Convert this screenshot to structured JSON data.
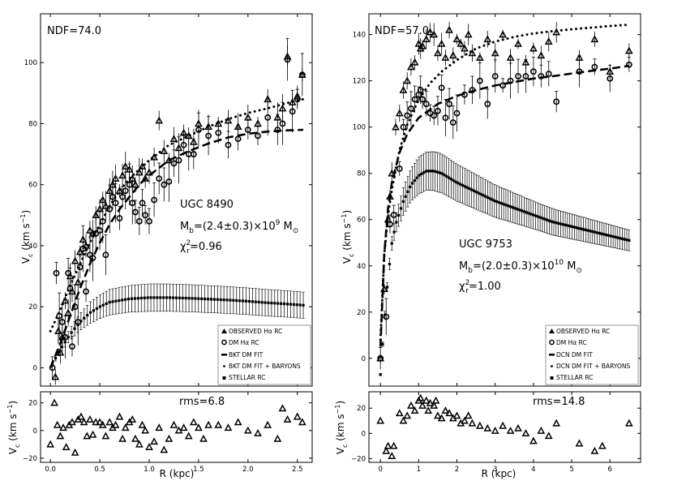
{
  "chart_data": [
    {
      "panel": "left",
      "type": "scatter",
      "ndf": "NDF=74.0",
      "galaxy": "UGC 8490",
      "mass_text": "M",
      "mass_sub": "b",
      "mass_value": "=(2.4±0.3)×10",
      "mass_exp": "9",
      "mass_unit": " M",
      "mass_unit_sub": "⊙",
      "chi_text": "χ",
      "chi_sup": "2",
      "chi_sub": "r",
      "chi_value": "=0.96",
      "rms": "rms=6.8",
      "ylabel": "V",
      "ylabel_sub": "c",
      "ylabel_unit": " (km s",
      "ylabel_exp": "−1",
      "ylabel_close": ")",
      "xlabel": "R (kpc)",
      "xlim": [
        -0.1,
        2.65
      ],
      "ylim": [
        -6,
        116
      ],
      "res_ylim": [
        -23,
        28
      ],
      "xticks": [
        0.0,
        0.5,
        1.0,
        1.5,
        2.0,
        2.5
      ],
      "xticklabels": [
        "0.0",
        "0.5",
        "1.0",
        "1.5",
        "2.0",
        "2.5"
      ],
      "yticks": [
        0,
        20,
        40,
        60,
        80,
        100
      ],
      "res_yticks": [
        -20,
        0,
        20
      ],
      "legend": [
        "OBSERVED Hα RC",
        "DM Hα RC",
        "BKT DM FIT",
        "BKT DM FIT + BARYONS",
        "STELLAR RC"
      ],
      "observed": {
        "x": [
          0.05,
          0.08,
          0.1,
          0.12,
          0.15,
          0.18,
          0.2,
          0.22,
          0.25,
          0.28,
          0.3,
          0.33,
          0.36,
          0.4,
          0.43,
          0.46,
          0.5,
          0.53,
          0.56,
          0.6,
          0.63,
          0.66,
          0.7,
          0.73,
          0.76,
          0.8,
          0.83,
          0.86,
          0.9,
          0.93,
          0.96,
          1.0,
          1.05,
          1.1,
          1.15,
          1.2,
          1.25,
          1.3,
          1.35,
          1.4,
          1.45,
          1.5,
          1.6,
          1.7,
          1.8,
          1.9,
          2.0,
          2.1,
          2.2,
          2.3,
          2.35,
          2.4,
          2.45,
          2.5,
          2.55
        ],
        "y": [
          -3,
          12,
          5,
          10,
          22,
          18,
          30,
          25,
          35,
          28,
          38,
          42,
          40,
          45,
          44,
          50,
          52,
          55,
          53,
          58,
          60,
          62,
          58,
          63,
          66,
          65,
          62,
          60,
          64,
          66,
          62,
          64,
          69,
          81,
          71,
          68,
          75,
          72,
          77,
          76,
          74,
          80,
          79,
          80,
          81,
          79,
          82,
          80,
          88,
          82,
          85,
          102,
          87,
          89,
          96
        ]
      },
      "dm": {
        "x": [
          0.02,
          0.06,
          0.09,
          0.12,
          0.15,
          0.18,
          0.2,
          0.22,
          0.25,
          0.28,
          0.3,
          0.33,
          0.36,
          0.4,
          0.43,
          0.46,
          0.5,
          0.53,
          0.56,
          0.6,
          0.63,
          0.66,
          0.7,
          0.73,
          0.76,
          0.8,
          0.83,
          0.86,
          0.9,
          0.93,
          0.96,
          1.0,
          1.05,
          1.1,
          1.15,
          1.2,
          1.25,
          1.3,
          1.35,
          1.4,
          1.45,
          1.5,
          1.6,
          1.7,
          1.8,
          1.9,
          2.0,
          2.1,
          2.2,
          2.3,
          2.35,
          2.4,
          2.45,
          2.5,
          2.55
        ],
        "y": [
          0,
          31,
          17,
          15,
          10,
          31,
          26,
          7,
          20,
          15,
          33,
          39,
          25,
          37,
          36,
          44,
          45,
          48,
          37,
          52,
          56,
          54,
          49,
          56,
          58,
          60,
          54,
          51,
          48,
          54,
          50,
          48,
          55,
          62,
          60,
          61,
          67,
          68,
          73,
          70,
          70,
          78,
          76,
          77,
          73,
          75,
          78,
          76,
          82,
          78,
          80,
          101,
          84,
          88,
          96
        ]
      },
      "fit": {
        "x": [
          0.0,
          0.1,
          0.2,
          0.3,
          0.4,
          0.5,
          0.6,
          0.7,
          0.8,
          0.9,
          1.0,
          1.2,
          1.4,
          1.6,
          1.8,
          2.0,
          2.2,
          2.4,
          2.56
        ],
        "y": [
          0,
          8,
          17,
          26,
          34,
          41,
          47,
          52,
          56,
          60,
          63,
          68,
          71,
          73.5,
          75.5,
          76.7,
          77.4,
          77.8,
          78
        ]
      },
      "fit_baryons": {
        "x": [
          0.0,
          0.1,
          0.2,
          0.3,
          0.4,
          0.5,
          0.6,
          0.7,
          0.8,
          0.9,
          1.0,
          1.2,
          1.4,
          1.6,
          1.8,
          2.0,
          2.2,
          2.4,
          2.56
        ],
        "y": [
          12,
          19,
          27,
          34,
          41,
          47,
          53,
          58,
          62,
          65,
          68,
          73,
          76,
          79,
          81.5,
          83.5,
          85,
          86.8,
          88
        ]
      },
      "stellar": {
        "x_start": 0.02,
        "x_end": 2.56,
        "count": 80,
        "curve": {
          "x": [
            0.0,
            0.1,
            0.2,
            0.3,
            0.4,
            0.5,
            0.6,
            0.8,
            1.0,
            1.2,
            1.4,
            1.6,
            1.8,
            2.0,
            2.2,
            2.4,
            2.56
          ],
          "y": [
            0,
            6,
            11,
            15,
            18,
            20,
            21.5,
            22.6,
            23,
            23,
            22.8,
            22.5,
            22.2,
            21.8,
            21.3,
            20.9,
            20.5
          ]
        },
        "err": {
          "x": [
            0.0,
            0.2,
            0.4,
            0.6,
            1.0,
            2.56
          ],
          "y": [
            0.5,
            2,
            3.5,
            4.2,
            4.5,
            4.3
          ]
        }
      },
      "residuals": {
        "x": [
          0.0,
          0.04,
          0.07,
          0.1,
          0.13,
          0.16,
          0.19,
          0.22,
          0.25,
          0.28,
          0.31,
          0.34,
          0.37,
          0.4,
          0.43,
          0.46,
          0.5,
          0.53,
          0.56,
          0.6,
          0.63,
          0.66,
          0.7,
          0.73,
          0.76,
          0.8,
          0.83,
          0.86,
          0.9,
          0.93,
          0.96,
          1.0,
          1.05,
          1.1,
          1.15,
          1.2,
          1.25,
          1.3,
          1.35,
          1.4,
          1.45,
          1.5,
          1.55,
          1.6,
          1.7,
          1.8,
          1.9,
          2.0,
          2.1,
          2.2,
          2.3,
          2.35,
          2.4,
          2.5,
          2.55
        ],
        "y": [
          -10,
          20,
          4,
          -4,
          2,
          -12,
          4,
          6,
          -16,
          8,
          10,
          6,
          -4,
          8,
          -3,
          6,
          6,
          4,
          -4,
          6,
          2,
          4,
          10,
          -6,
          2,
          6,
          8,
          -6,
          -10,
          4,
          0,
          -12,
          -8,
          2,
          -14,
          -6,
          4,
          0,
          2,
          -4,
          6,
          2,
          -6,
          4,
          4,
          2,
          6,
          0,
          -2,
          4,
          -6,
          16,
          8,
          10,
          6
        ]
      }
    },
    {
      "panel": "right",
      "type": "scatter",
      "ndf": "NDF=57.0",
      "galaxy": "UGC 9753",
      "mass_text": "M",
      "mass_sub": "b",
      "mass_value": "=(2.0±0.3)×10",
      "mass_exp": "10",
      "mass_unit": " M",
      "mass_unit_sub": "⊙",
      "chi_text": "χ",
      "chi_sup": "2",
      "chi_sub": "r",
      "chi_value": "=1.00",
      "rms": "rms=14.8",
      "ylabel": "V",
      "ylabel_sub": "c",
      "ylabel_unit": " (km s",
      "ylabel_exp": "−1",
      "ylabel_close": ")",
      "xlabel": "R (kpc)",
      "xlim": [
        -0.3,
        6.8
      ],
      "ylim": [
        -12,
        149
      ],
      "res_ylim": [
        -23,
        33
      ],
      "xticks": [
        0,
        1,
        2,
        3,
        4,
        5,
        6
      ],
      "xticklabels": [
        "0",
        "1",
        "2",
        "3",
        "4",
        "5",
        "6"
      ],
      "yticks": [
        0,
        20,
        40,
        60,
        80,
        100,
        120,
        140
      ],
      "res_yticks": [
        -20,
        0,
        20
      ],
      "legend": [
        "OBSERVED Hα RC",
        "DM Hα RC",
        "DCN DM FIT",
        "DCN DM FIT + BARYONS",
        "STELLAR RC"
      ],
      "observed": {
        "x": [
          0.0,
          0.1,
          0.2,
          0.25,
          0.3,
          0.4,
          0.5,
          0.6,
          0.7,
          0.8,
          0.9,
          1.0,
          1.05,
          1.1,
          1.2,
          1.3,
          1.4,
          1.5,
          1.6,
          1.7,
          1.8,
          1.9,
          2.0,
          2.1,
          2.2,
          2.3,
          2.4,
          2.6,
          2.8,
          3.0,
          3.2,
          3.4,
          3.6,
          3.8,
          4.0,
          4.2,
          4.4,
          4.6,
          5.2,
          5.6,
          6.0,
          6.5
        ],
        "y": [
          0,
          30,
          60,
          70,
          80,
          100,
          106,
          116,
          120,
          126,
          128,
          136,
          134,
          135,
          138,
          141,
          140,
          132,
          136,
          130,
          142,
          131,
          138,
          136,
          134,
          140,
          132,
          130,
          138,
          132,
          140,
          130,
          136,
          128,
          134,
          131,
          137,
          141,
          130,
          138,
          124,
          133
        ]
      },
      "dm": {
        "x": [
          0.0,
          0.15,
          0.25,
          0.35,
          0.5,
          0.6,
          0.7,
          0.8,
          0.9,
          1.0,
          1.05,
          1.1,
          1.2,
          1.3,
          1.4,
          1.5,
          1.6,
          1.7,
          1.8,
          1.9,
          2.0,
          2.2,
          2.4,
          2.6,
          2.8,
          3.0,
          3.2,
          3.4,
          3.6,
          3.8,
          4.0,
          4.2,
          4.4,
          4.6,
          5.2,
          5.6,
          6.0,
          6.5
        ],
        "y": [
          0,
          18,
          58,
          62,
          82,
          100,
          105,
          108,
          112,
          114,
          116,
          112,
          110,
          106,
          105,
          107,
          117,
          104,
          110,
          102,
          106,
          114,
          116,
          120,
          110,
          122,
          118,
          120,
          122,
          122,
          124,
          122,
          123,
          111,
          124,
          126,
          121,
          127
        ]
      },
      "fit": {
        "x": [
          0.0,
          0.1,
          0.2,
          0.3,
          0.5,
          0.7,
          1.0,
          1.5,
          2.0,
          2.5,
          3.0,
          3.5,
          4.0,
          4.5,
          5.0,
          5.5,
          6.0,
          6.5
        ],
        "y": [
          5,
          45,
          65,
          76,
          89,
          97,
          104,
          110,
          113.5,
          116,
          118,
          119.5,
          121,
          122,
          123.2,
          124.3,
          125.3,
          126.5
        ]
      },
      "fit_baryons": {
        "x": [
          0.0,
          0.1,
          0.2,
          0.3,
          0.5,
          0.7,
          1.0,
          1.3,
          1.6,
          2.0,
          2.5,
          3.0,
          3.5,
          4.0,
          4.5,
          5.0,
          5.5,
          6.0,
          6.5
        ],
        "y": [
          8,
          45,
          62,
          73,
          90,
          101,
          112,
          119,
          124,
          129,
          134,
          137,
          139,
          140.5,
          141.5,
          142.3,
          143,
          143.7,
          144.3
        ]
      },
      "stellar": {
        "x_start": 0.0,
        "x_end": 6.5,
        "count": 110,
        "curve": {
          "x": [
            0.0,
            0.1,
            0.2,
            0.3,
            0.4,
            0.6,
            0.8,
            1.0,
            1.2,
            1.4,
            1.6,
            1.8,
            2.0,
            2.5,
            3.0,
            3.5,
            4.0,
            4.5,
            5.0,
            5.5,
            6.0,
            6.5
          ],
          "y": [
            -7,
            15,
            35,
            50,
            58,
            68,
            75,
            79,
            81,
            81,
            80,
            78,
            76,
            72,
            68,
            65,
            62,
            59,
            57,
            55,
            53,
            51
          ]
        },
        "err": {
          "x": [
            0.0,
            0.3,
            0.6,
            1.0,
            1.5,
            2.5,
            4.0,
            6.5
          ],
          "y": [
            0.5,
            3,
            6,
            8,
            8.5,
            7.5,
            6,
            4.5
          ]
        }
      },
      "residuals": {
        "x": [
          0.0,
          0.15,
          0.2,
          0.3,
          0.35,
          0.5,
          0.6,
          0.7,
          0.8,
          0.9,
          1.0,
          1.05,
          1.1,
          1.2,
          1.25,
          1.3,
          1.4,
          1.45,
          1.5,
          1.6,
          1.7,
          1.8,
          1.9,
          2.0,
          2.1,
          2.2,
          2.3,
          2.4,
          2.6,
          2.8,
          3.0,
          3.2,
          3.4,
          3.6,
          3.8,
          4.0,
          4.2,
          4.4,
          4.6,
          5.2,
          5.6,
          5.8,
          6.5
        ],
        "y": [
          10,
          -14,
          -10,
          -18,
          -10,
          16,
          10,
          14,
          22,
          18,
          26,
          28,
          22,
          26,
          18,
          24,
          22,
          26,
          14,
          12,
          18,
          16,
          12,
          14,
          8,
          10,
          14,
          8,
          6,
          4,
          2,
          6,
          2,
          4,
          0,
          -6,
          2,
          -2,
          8,
          -8,
          -14,
          -10,
          8
        ]
      }
    }
  ]
}
